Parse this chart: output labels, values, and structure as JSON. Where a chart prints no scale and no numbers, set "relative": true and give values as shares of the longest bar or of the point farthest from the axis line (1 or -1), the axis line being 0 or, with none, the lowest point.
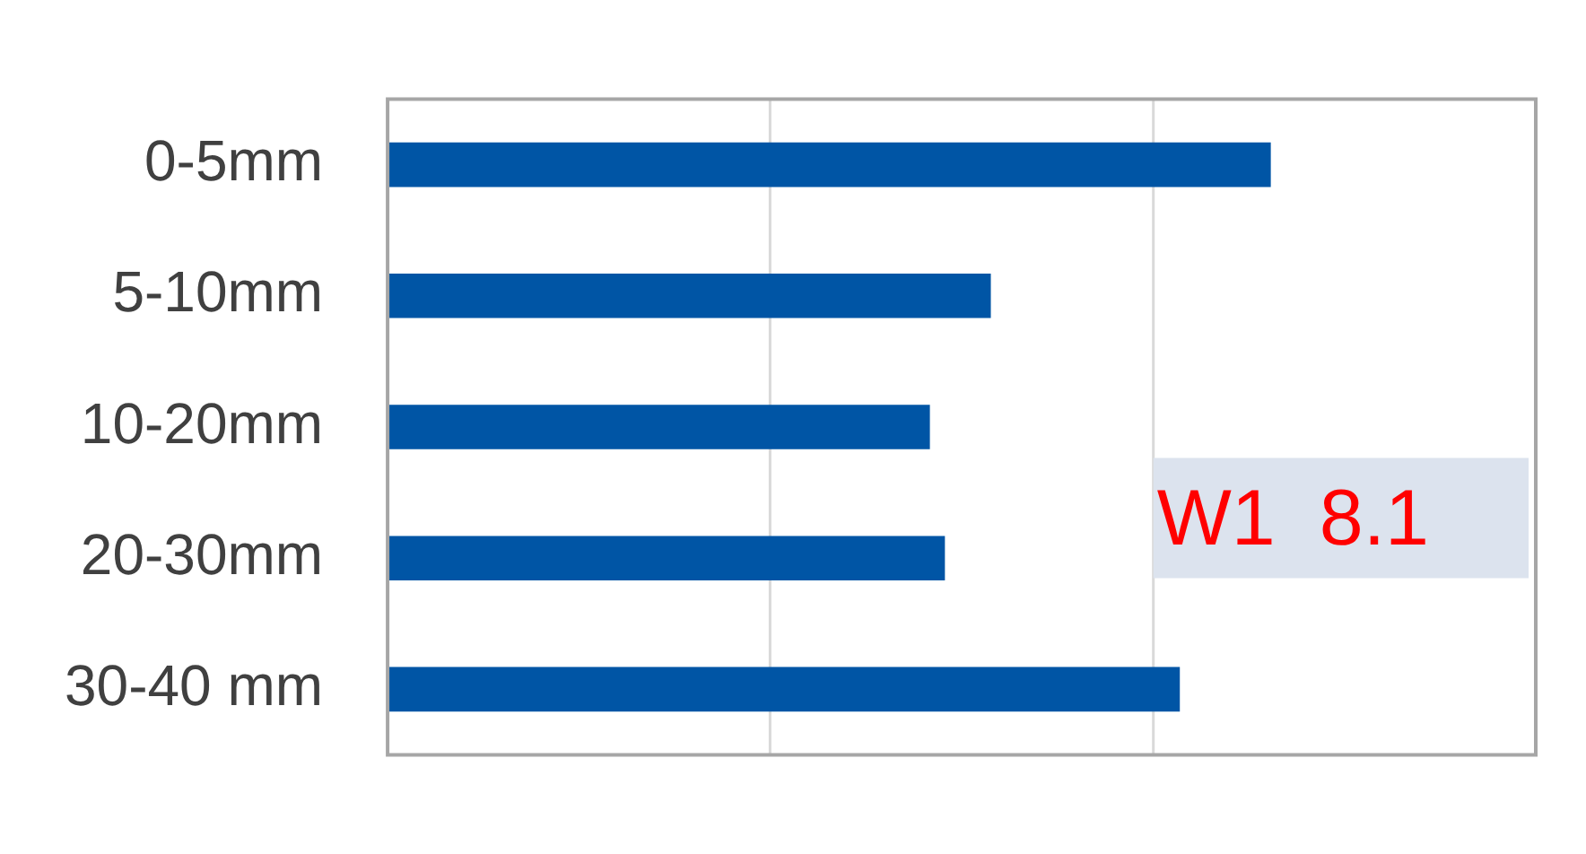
{
  "chart_data": {
    "type": "bar",
    "orientation": "horizontal",
    "relative": true,
    "categories": [
      "0-5mm",
      "5-10mm",
      "10-20mm",
      "20-30mm",
      "30-40 mm"
    ],
    "values": [
      1,
      0.683,
      0.614,
      0.631,
      0.897
    ],
    "color": "#0055a5",
    "ref_lines": [
      {
        "axis": "x",
        "value": 0.433,
        "color": "#d9d9d9"
      },
      {
        "axis": "x",
        "value": 0.867,
        "color": "#d9d9d9"
      }
    ],
    "annotations": [
      "W1  8.1"
    ]
  }
}
